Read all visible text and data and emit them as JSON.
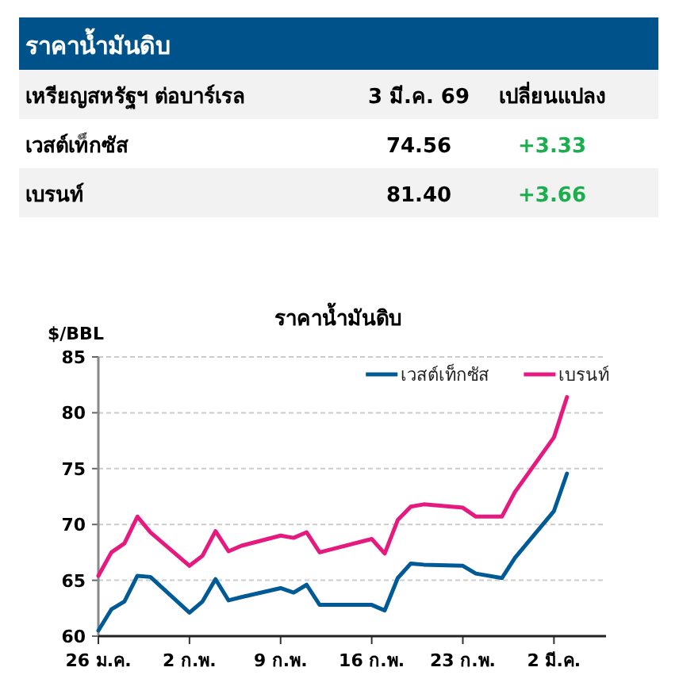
{
  "chart_data": [
    {
      "type": "other",
      "title": "ราคาน้ำมันดิบ",
      "annotations": [
        "เหรียญสหรัฐฯ ต่อบาร์เรล",
        "3 มี.ค. 69",
        "เปลี่ยนแปลง",
        "เวสต์เท็กซัส",
        "74.56",
        "+3.33",
        "เบรนท์",
        "81.40",
        "+3.66"
      ],
      "colors": [
        "#000000",
        "#000000",
        "#000000",
        "#000000",
        "#000000",
        "#1aae4e",
        "#000000",
        "#000000",
        "#1aae4e"
      ]
    },
    {
      "type": "line",
      "title": "ราคาน้ำมันดิบ",
      "ylabel": "$/BBL",
      "x": [
        "--01-26",
        "--01-27",
        "--01-28",
        "--01-29",
        "--01-30",
        "--02-02",
        "--02-03",
        "--02-04",
        "--02-05",
        "--02-06",
        "--02-09",
        "--02-10",
        "--02-11",
        "--02-12",
        "--02-13",
        "--02-16",
        "--02-17",
        "--02-18",
        "--02-19",
        "--02-20",
        "--02-23",
        "--02-24",
        "--02-26",
        "--02-27",
        "--03-02",
        "--03-03"
      ],
      "series": [
        {
          "name": "เวสต์เท็กซัส",
          "color": "#005a96",
          "values": [
            60.5,
            62.4,
            63.1,
            65.4,
            65.3,
            62.1,
            63.1,
            65.1,
            63.2,
            63.5,
            64.3,
            63.9,
            64.6,
            62.8,
            62.8,
            62.8,
            62.3,
            65.2,
            66.5,
            66.4,
            66.3,
            65.6,
            65.2,
            67.0,
            71.2,
            74.56
          ]
        },
        {
          "name": "เบรนท์",
          "color": "#e6197f",
          "values": [
            65.4,
            67.5,
            68.3,
            70.7,
            69.3,
            66.3,
            67.2,
            69.4,
            67.6,
            68.1,
            69.0,
            68.8,
            69.3,
            67.5,
            67.8,
            68.7,
            67.4,
            70.4,
            71.6,
            71.8,
            71.5,
            70.7,
            70.7,
            72.9,
            77.8,
            81.4
          ]
        }
      ],
      "xlim": [
        "--01-26",
        "--03-06"
      ],
      "xticks": [
        {
          "value": "--01-26",
          "label": "26 ม.ค."
        },
        {
          "value": "--02-02",
          "label": "2 ก.พ."
        },
        {
          "value": "--02-09",
          "label": "9 ก.พ."
        },
        {
          "value": "--02-16",
          "label": "16 ก.พ."
        },
        {
          "value": "--02-23",
          "label": "23 ก.พ."
        },
        {
          "value": "--03-02",
          "label": "2 มี.ค."
        }
      ],
      "ylim": [
        60,
        85
      ],
      "yticks": [
        60,
        65,
        70,
        75,
        80,
        85
      ],
      "grid": "y",
      "legend": "top right",
      "marker": "none",
      "line_style": "solid"
    }
  ]
}
